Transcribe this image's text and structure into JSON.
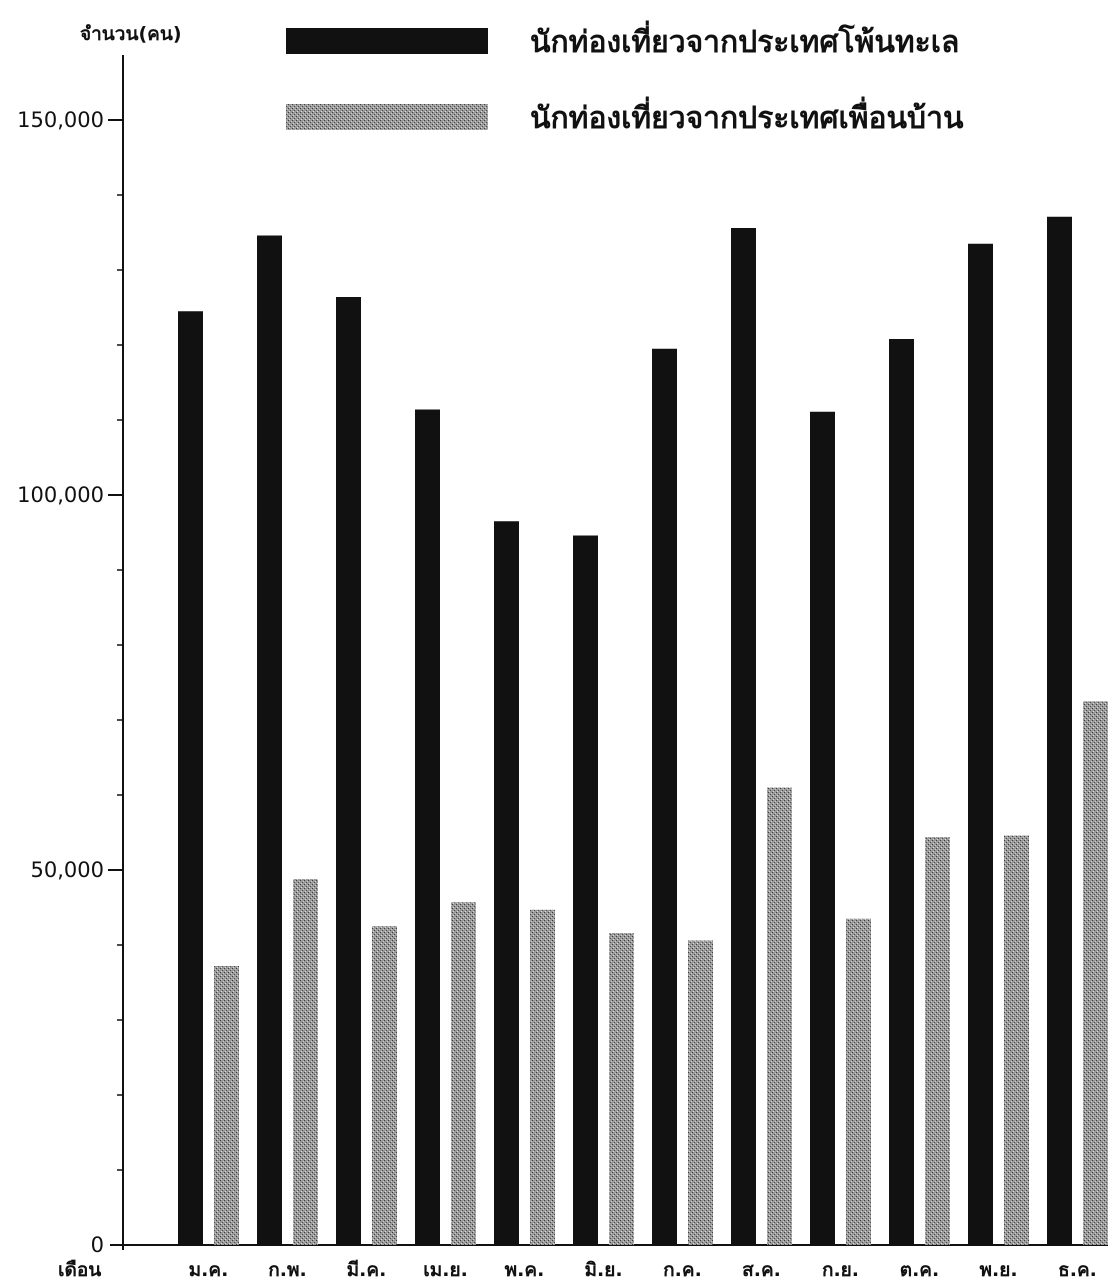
{
  "chart_data": {
    "type": "bar",
    "ylabel": "จำนวน(คน)",
    "xlabel": "เดือน",
    "ylim": [
      0,
      150000
    ],
    "yticks": [
      {
        "value": 0,
        "label": "0"
      },
      {
        "value": 50000,
        "label": "50,000"
      },
      {
        "value": 100000,
        "label": "100,000"
      },
      {
        "value": 150000,
        "label": "150,000"
      }
    ],
    "minor_tick_step": 10000,
    "grid": false,
    "legend_position": "top",
    "categories": [
      "ม.ค.",
      "ก.พ.",
      "มี.ค.",
      "เม.ย.",
      "พ.ค.",
      "มิ.ย.",
      "ก.ค.",
      "ส.ค.",
      "ก.ย.",
      "ต.ค.",
      "พ.ย.",
      "ธ.ค."
    ],
    "series": [
      {
        "name": "นักท่องเที่ยวจากประเทศโพ้นทะเล",
        "color": "#111111",
        "pattern": "solid",
        "values": [
          124500,
          134600,
          126400,
          111400,
          96500,
          94600,
          119500,
          135600,
          111100,
          120800,
          133500,
          137100
        ]
      },
      {
        "name": "นักท่องเที่ยวจากประเทศเพื่อนบ้าน",
        "color": "#8a8a8a",
        "pattern": "dotted-gray",
        "values": [
          37200,
          48800,
          42500,
          45700,
          44700,
          41600,
          40600,
          61000,
          43500,
          54400,
          54600,
          72500
        ]
      }
    ]
  }
}
